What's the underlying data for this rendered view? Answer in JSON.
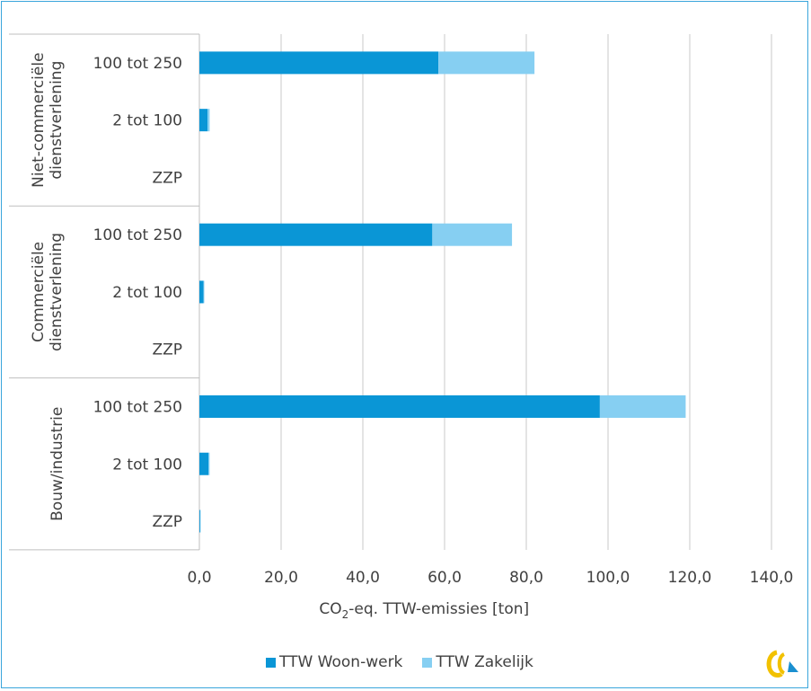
{
  "chart_data": {
    "type": "bar",
    "orientation": "horizontal",
    "stacked": true,
    "xlabel_main": "CO",
    "xlabel_sub": "2",
    "xlabel_rest": "-eq. TTW-emissies [ton]",
    "xlim": [
      0,
      140
    ],
    "xticks": [
      0,
      20,
      40,
      60,
      80,
      100,
      120,
      140
    ],
    "xtick_labels": [
      "0,0",
      "20,0",
      "40,0",
      "60,0",
      "80,0",
      "100,0",
      "120,0",
      "140,0"
    ],
    "grid": true,
    "legend_position": "bottom",
    "groups": [
      {
        "name": "Niet-commerciële dienstverlening",
        "name_lines": [
          "Niet-commerciële",
          "dienstverlening"
        ],
        "categories": [
          "100 tot 250",
          "2 tot 100",
          "ZZP"
        ]
      },
      {
        "name": "Commerciële dienstverlening",
        "name_lines": [
          "Commerciële",
          "dienstverlening"
        ],
        "categories": [
          "100 tot 250",
          "2 tot 100",
          "ZZP"
        ]
      },
      {
        "name": "Bouw/industrie",
        "name_lines": [
          "Bouw/industrie"
        ],
        "categories": [
          "100 tot 250",
          "2 tot 100",
          "ZZP"
        ]
      }
    ],
    "series": [
      {
        "name": "TTW Woon-werk",
        "color": "#0a96d6",
        "values": [
          [
            58.5,
            2.0,
            0.0
          ],
          [
            57.0,
            1.0,
            0.0
          ],
          [
            98.0,
            2.2,
            0.2
          ]
        ]
      },
      {
        "name": "TTW Zakelijk",
        "color": "#86cff2",
        "values": [
          [
            23.5,
            0.5,
            0.0
          ],
          [
            19.5,
            0.2,
            0.0
          ],
          [
            21.0,
            0.3,
            0.1
          ]
        ]
      }
    ]
  },
  "logo": {
    "name": "logo-icon"
  }
}
